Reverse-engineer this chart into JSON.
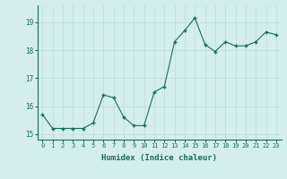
{
  "x": [
    0,
    1,
    2,
    3,
    4,
    5,
    6,
    7,
    8,
    9,
    10,
    11,
    12,
    13,
    14,
    15,
    16,
    17,
    18,
    19,
    20,
    21,
    22,
    23
  ],
  "y": [
    15.7,
    15.2,
    15.2,
    15.2,
    15.2,
    15.4,
    16.4,
    16.3,
    15.6,
    15.3,
    15.3,
    16.5,
    16.7,
    18.3,
    18.7,
    19.15,
    18.2,
    17.95,
    18.3,
    18.15,
    18.15,
    18.3,
    18.65,
    18.55
  ],
  "xlabel": "Humidex (Indice chaleur)",
  "ylim": [
    14.8,
    19.6
  ],
  "xlim": [
    -0.5,
    23.5
  ],
  "yticks": [
    15,
    16,
    17,
    18,
    19
  ],
  "xticks": [
    0,
    1,
    2,
    3,
    4,
    5,
    6,
    7,
    8,
    9,
    10,
    11,
    12,
    13,
    14,
    15,
    16,
    17,
    18,
    19,
    20,
    21,
    22,
    23
  ],
  "line_color": "#1a6b5e",
  "marker_color": "#1a6b5e",
  "bg_color": "#d4eeeb",
  "grid_color": "#b8ddd9",
  "xlabel_color": "#1a6b5e",
  "tick_color": "#1a6b5e"
}
